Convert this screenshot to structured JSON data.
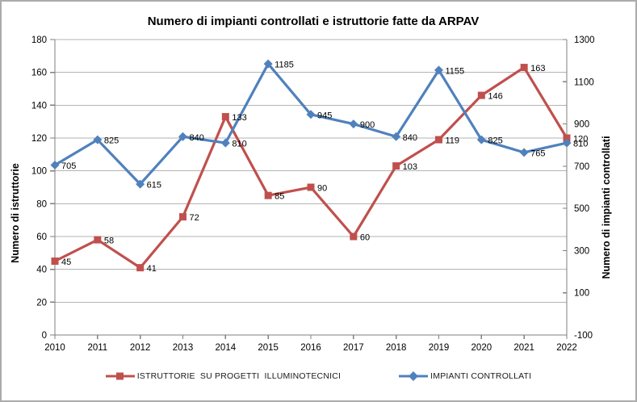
{
  "chart_data": {
    "type": "line",
    "title": "Numero di impianti controllati e istruttorie fatte da ARPAV",
    "categories": [
      "2010",
      "2011",
      "2012",
      "2013",
      "2014",
      "2015",
      "2016",
      "2017",
      "2018",
      "2019",
      "2020",
      "2021",
      "2022"
    ],
    "series": [
      {
        "id": "istruttorie",
        "name": "ISTRUTTORIE  SU PROGETTI  ILLUMINOTECNICI",
        "axis": "left",
        "color": "#C0504D",
        "marker": "square",
        "values": [
          45,
          58,
          41,
          72,
          133,
          85,
          90,
          60,
          103,
          119,
          146,
          163,
          120
        ]
      },
      {
        "id": "impianti",
        "name": "IMPIANTI CONTROLLATI",
        "axis": "right",
        "color": "#4F81BD",
        "marker": "diamond",
        "values": [
          705,
          825,
          615,
          840,
          810,
          1185,
          945,
          900,
          840,
          1155,
          825,
          765,
          810
        ]
      }
    ],
    "axes": {
      "left": {
        "title": "Numero di istruttorie",
        "min": 0,
        "max": 180,
        "step": 20,
        "tick_labels": [
          "0",
          "20",
          "40",
          "60",
          "80",
          "100",
          "120",
          "140",
          "160",
          "180"
        ]
      },
      "right": {
        "title": "Numero di impianti controllati",
        "min": -100,
        "max": 1300,
        "step": 200,
        "tick_labels": [
          "-100",
          "100",
          "300",
          "500",
          "700",
          "900",
          "1100",
          "1300"
        ]
      }
    },
    "grid": true,
    "data_labels": true,
    "legend_position": "bottom",
    "colors": {
      "grid": "#b3b3b3",
      "axis": "#7f7f7f",
      "text": "#000000",
      "background": "#ffffff",
      "frame_border": "#ababab"
    }
  }
}
